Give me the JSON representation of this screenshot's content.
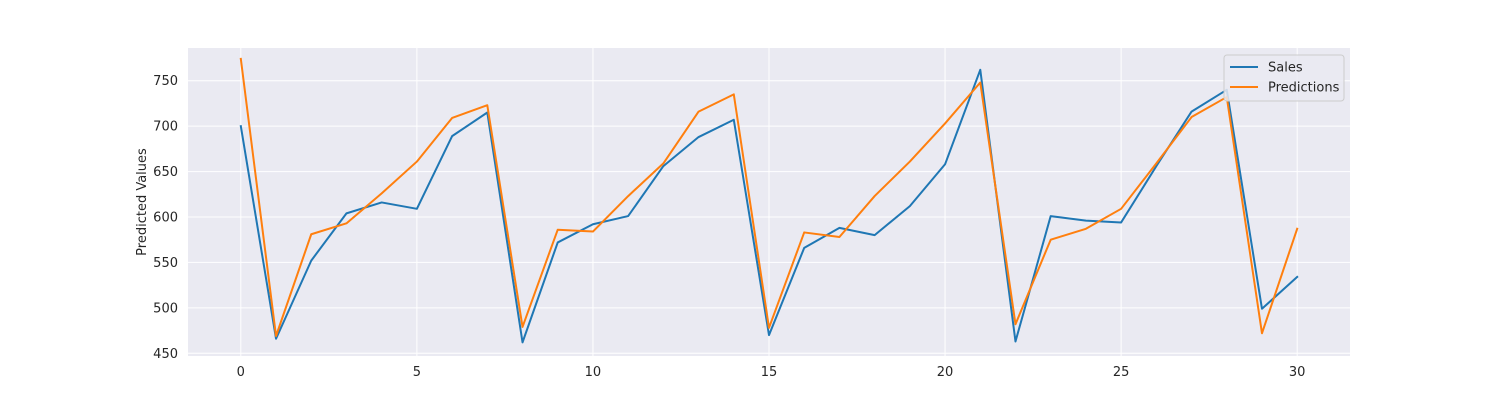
{
  "chart_data": {
    "type": "line",
    "title": "",
    "xlabel": "",
    "ylabel": "Predicted Values",
    "x": [
      0,
      1,
      2,
      3,
      4,
      5,
      6,
      7,
      8,
      9,
      10,
      11,
      12,
      13,
      14,
      15,
      16,
      17,
      18,
      19,
      20,
      21,
      22,
      23,
      24,
      25,
      26,
      27,
      28,
      29,
      30
    ],
    "xlim": [
      -1.5,
      31.5
    ],
    "ylim": [
      447,
      786
    ],
    "xticks": [
      0,
      5,
      10,
      15,
      20,
      25,
      30
    ],
    "yticks": [
      450,
      500,
      550,
      600,
      650,
      700,
      750
    ],
    "grid": true,
    "legend_position": "top-right",
    "series": [
      {
        "name": "Sales",
        "color": "#1f77b4",
        "values": [
          700,
          466,
          552,
          604,
          616,
          609,
          689,
          715,
          462,
          572,
          592,
          601,
          656,
          688,
          707,
          470,
          566,
          588,
          580,
          612,
          658,
          762,
          463,
          601,
          596,
          594,
          656,
          716,
          740,
          499,
          534
        ]
      },
      {
        "name": "Predictions",
        "color": "#ff7f0e",
        "values": [
          774,
          469,
          581,
          593,
          626,
          661,
          709,
          723,
          479,
          586,
          584,
          623,
          659,
          716,
          735,
          478,
          583,
          578,
          623,
          661,
          703,
          748,
          482,
          575,
          587,
          609,
          659,
          710,
          732,
          472,
          587
        ]
      }
    ]
  }
}
